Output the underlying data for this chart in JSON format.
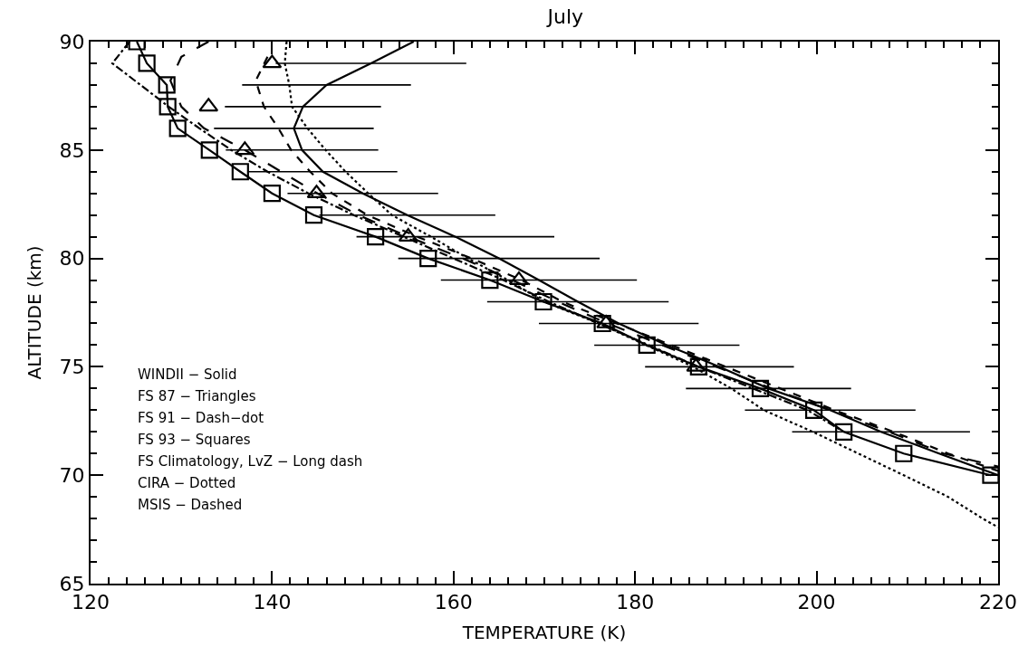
{
  "chart_data": {
    "type": "line",
    "title": "July",
    "xlabel": "TEMPERATURE (K)",
    "ylabel": "ALTITUDE (km)",
    "xlim": [
      120,
      220
    ],
    "xticks": [
      120,
      140,
      160,
      180,
      200,
      220
    ],
    "ylim": [
      65,
      90
    ],
    "yticks": [
      65,
      70,
      75,
      80,
      85,
      90
    ],
    "annotations": [
      "WINDII − Solid",
      "FS 87 − Triangles",
      "FS 91 − Dash−dot",
      "FS 93 − Squares",
      "FS Climatology, LvZ − Long dash",
      "CIRA − Dotted",
      "MSIS − Dashed"
    ],
    "series": [
      {
        "color": "#000000",
        "line_style": "solid",
        "marker": "none",
        "x": [
          155.6,
          150.9,
          146.0,
          143.4,
          142.4,
          143.3,
          145.6,
          150.0,
          154.9,
          160.2,
          165.0,
          169.4,
          173.7,
          178.2,
          183.5,
          189.3,
          194.7,
          201.5,
          207.1,
          213.5,
          220.0
        ],
        "values": [
          90,
          89,
          88,
          87,
          86,
          85,
          84,
          83,
          82,
          81,
          80,
          79,
          78,
          77,
          76,
          75,
          74,
          73,
          72,
          71,
          70
        ],
        "xerrors": [
          null,
          10.5,
          9.3,
          8.6,
          8.8,
          8.4,
          8.2,
          8.3,
          9.7,
          10.9,
          11.1,
          10.8,
          10.0,
          8.8,
          8.0,
          8.2,
          9.1,
          9.4,
          9.8,
          null,
          null
        ]
      },
      {
        "type": "scatter",
        "color": "#000000",
        "marker": "triangle",
        "x": [
          140.0,
          133.0,
          137.0,
          144.9,
          155.0,
          167.2,
          176.8,
          186.7
        ],
        "values": [
          89,
          87,
          85,
          83,
          81,
          79,
          77,
          75
        ]
      },
      {
        "color": "#000000",
        "line_style": "dashdot",
        "marker": "none",
        "x": [
          124.3,
          122.4,
          125.5,
          128.6,
          132.0,
          135.5,
          139.5,
          144.0,
          149.0,
          154.5,
          160.0,
          165.5,
          170.5,
          176.0,
          181.5,
          187.0,
          193.0,
          199.0,
          203.0
        ],
        "values": [
          90,
          89,
          88,
          87,
          86,
          85,
          84,
          83,
          82,
          81,
          80,
          79,
          78,
          77,
          76,
          75,
          74,
          73,
          72
        ]
      },
      {
        "color": "#000000",
        "line_style": "solid",
        "marker": "square",
        "x": [
          125.1,
          126.2,
          128.4,
          128.5,
          129.6,
          133.1,
          136.5,
          140.0,
          144.6,
          151.4,
          157.2,
          164.0,
          169.9,
          176.4,
          181.3,
          187.0,
          193.8,
          199.7,
          203.0,
          209.6,
          219.2
        ],
        "values": [
          90,
          89,
          88,
          87,
          86,
          85,
          84,
          83,
          82,
          81,
          80,
          79,
          78,
          77,
          76,
          75,
          74,
          73,
          72,
          71,
          70
        ]
      },
      {
        "color": "#000000",
        "line_style": "longdash",
        "marker": "none",
        "x": [
          133.0,
          130.0,
          128.8,
          130.0,
          132.5,
          137.0,
          141.0,
          145.0,
          149.5,
          155.0,
          161.0,
          166.5,
          171.5,
          177.0,
          183.0,
          189.0,
          195.0,
          201.5,
          208.0,
          214.0,
          220.0
        ],
        "values": [
          90,
          89.3,
          88.2,
          87,
          86,
          85,
          84,
          83,
          82,
          81,
          80,
          79,
          78,
          77,
          76,
          75,
          74,
          73,
          72,
          71,
          70.4
        ]
      },
      {
        "color": "#000000",
        "line_style": "dotted",
        "marker": "none",
        "x": [
          141.6,
          141.4,
          141.9,
          142.2,
          143.9,
          145.9,
          148.1,
          150.6,
          153.2,
          157.5,
          161.6,
          166.0,
          170.0,
          176.0,
          181.2,
          186.4,
          190.6,
          194.2,
          199.6,
          204.6,
          209.6,
          214.5,
          218.3,
          220.0
        ],
        "values": [
          90,
          89,
          88,
          87,
          86,
          85,
          84,
          83,
          82,
          81,
          80,
          79,
          78,
          77,
          76,
          75,
          74,
          73,
          72,
          71,
          70,
          69,
          68,
          67.6
        ]
      },
      {
        "color": "#000000",
        "line_style": "dashed",
        "marker": "none",
        "x": [
          139.5,
          138.2,
          139.1,
          140.7,
          142.1,
          144.2,
          146.6,
          150.5,
          156.0,
          162.0,
          167.5,
          172.0,
          178.0,
          184.0,
          190.0,
          196.0,
          202.0,
          208.5,
          214.5,
          220.0
        ],
        "values": [
          89.3,
          88.2,
          87,
          86,
          85,
          84,
          83,
          82,
          81,
          80,
          79,
          78,
          77,
          76,
          75,
          74,
          73,
          72,
          71,
          70.2
        ]
      }
    ]
  }
}
